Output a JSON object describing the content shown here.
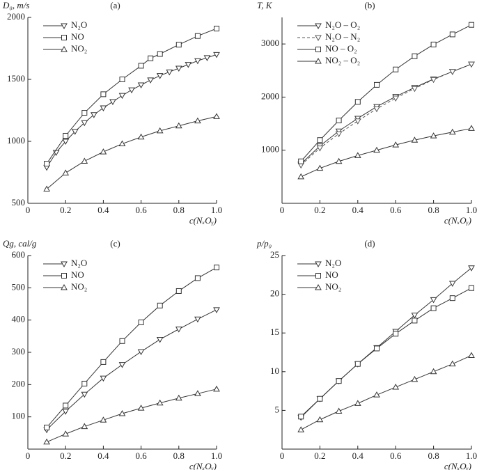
{
  "chart_data": [
    {
      "type": "line",
      "title": "(a)",
      "ylabel": "D₀, m/s",
      "xlabel": "c(NₓOᵧ)",
      "xlim": [
        0,
        1
      ],
      "xticks": [
        0,
        0.2,
        0.4,
        0.6,
        0.8,
        {
          "value": 1,
          "label": "1.0"
        }
      ],
      "ylim": [
        500,
        2000
      ],
      "yticks": [
        500,
        1000,
        1500,
        2000
      ],
      "legend": "upper left",
      "series": [
        {
          "name": "N₂O",
          "color": "#333333",
          "marker": "triangle-down",
          "dash": false,
          "x": [
            0.1,
            0.15,
            0.2,
            0.25,
            0.3,
            0.35,
            0.4,
            0.45,
            0.5,
            0.55,
            0.6,
            0.65,
            0.7,
            0.75,
            0.8,
            0.85,
            0.9,
            0.95,
            1
          ],
          "values": [
            790,
            910,
            1000,
            1080,
            1150,
            1215,
            1270,
            1320,
            1370,
            1415,
            1455,
            1495,
            1530,
            1560,
            1590,
            1620,
            1650,
            1675,
            1700
          ]
        },
        {
          "name": "NO",
          "color": "#333333",
          "marker": "square",
          "dash": false,
          "x": [
            0.1,
            0.2,
            0.3,
            0.4,
            0.5,
            0.6,
            0.65,
            0.7,
            0.8,
            0.9,
            1
          ],
          "values": [
            820,
            1045,
            1230,
            1380,
            1500,
            1610,
            1670,
            1705,
            1780,
            1850,
            1910
          ]
        },
        {
          "name": "NO₂",
          "color": "#333333",
          "marker": "triangle-up",
          "dash": false,
          "x": [
            0.1,
            0.2,
            0.3,
            0.4,
            0.5,
            0.6,
            0.7,
            0.8,
            0.9,
            1
          ],
          "values": [
            615,
            745,
            840,
            915,
            980,
            1035,
            1085,
            1125,
            1165,
            1200
          ]
        }
      ]
    },
    {
      "type": "line",
      "title": "(b)",
      "ylabel": "T, K",
      "xlabel": "c(NₓOᵧ)",
      "xlim": [
        0,
        1
      ],
      "xticks": [
        0,
        0.2,
        0.4,
        0.6,
        0.8,
        {
          "value": 1,
          "label": "1.0"
        }
      ],
      "ylim": [
        0,
        3500
      ],
      "yticks": [
        1000,
        2000,
        3000
      ],
      "legend": "upper left",
      "series": [
        {
          "name": "N₂O – O₂",
          "color": "#333333",
          "marker": "triangle-down",
          "dash": false,
          "x": [
            0.1,
            0.2,
            0.3,
            0.4,
            0.5,
            0.6,
            0.7,
            0.8,
            0.9,
            1
          ],
          "values": [
            740,
            1080,
            1360,
            1600,
            1820,
            2010,
            2180,
            2340,
            2480,
            2620
          ]
        },
        {
          "name": "N₂O – N₂",
          "color": "#555555",
          "marker": "triangle-down",
          "dash": true,
          "x": [
            0.1,
            0.2,
            0.3,
            0.4,
            0.5,
            0.6,
            0.7,
            0.8,
            0.9,
            1
          ],
          "values": [
            720,
            1040,
            1310,
            1550,
            1780,
            1980,
            2160,
            2330,
            2480,
            2620
          ]
        },
        {
          "name": "NO – O₂",
          "color": "#333333",
          "marker": "square",
          "dash": false,
          "x": [
            0.1,
            0.2,
            0.3,
            0.4,
            0.5,
            0.6,
            0.7,
            0.8,
            0.9,
            1
          ],
          "values": [
            790,
            1190,
            1560,
            1910,
            2230,
            2520,
            2770,
            2990,
            3180,
            3360
          ]
        },
        {
          "name": "NO₂ – O₂",
          "color": "#333333",
          "marker": "triangle-up",
          "dash": false,
          "x": [
            0.1,
            0.2,
            0.3,
            0.4,
            0.5,
            0.6,
            0.7,
            0.8,
            0.9,
            1
          ],
          "values": [
            500,
            660,
            790,
            900,
            1000,
            1100,
            1190,
            1270,
            1340,
            1410
          ]
        }
      ]
    },
    {
      "type": "line",
      "title": "(c)",
      "ylabel": "Qg, cal/g",
      "xlabel": "c(NₓOᵧ)",
      "xlim": [
        0,
        1
      ],
      "xticks": [
        0,
        0.2,
        0.4,
        0.6,
        0.8,
        {
          "value": 1,
          "label": "1.0"
        }
      ],
      "ylim": [
        0,
        600
      ],
      "yticks": [
        100,
        200,
        300,
        400,
        500,
        600
      ],
      "legend": "upper left",
      "series": [
        {
          "name": "N₂O",
          "color": "#333333",
          "marker": "triangle-down",
          "dash": false,
          "x": [
            0.1,
            0.2,
            0.3,
            0.4,
            0.5,
            0.6,
            0.7,
            0.8,
            0.9,
            1
          ],
          "values": [
            60,
            117,
            170,
            220,
            262,
            302,
            340,
            372,
            403,
            432
          ]
        },
        {
          "name": "NO",
          "color": "#333333",
          "marker": "square",
          "dash": false,
          "x": [
            0.1,
            0.2,
            0.3,
            0.4,
            0.5,
            0.6,
            0.7,
            0.8,
            0.9,
            1
          ],
          "values": [
            67,
            135,
            203,
            270,
            335,
            393,
            445,
            490,
            530,
            563
          ]
        },
        {
          "name": "NO₂",
          "color": "#333333",
          "marker": "triangle-up",
          "dash": false,
          "x": [
            0.1,
            0.2,
            0.3,
            0.4,
            0.5,
            0.6,
            0.7,
            0.8,
            0.9,
            1
          ],
          "values": [
            22,
            47,
            70,
            90,
            110,
            127,
            143,
            158,
            172,
            186
          ]
        }
      ]
    },
    {
      "type": "line",
      "title": "(d)",
      "ylabel": "p/p₀",
      "xlabel": "c(NₓOᵧ)",
      "xlim": [
        0,
        1
      ],
      "xticks": [
        0,
        0.2,
        0.4,
        0.6,
        0.8,
        {
          "value": 1,
          "label": "1.0"
        }
      ],
      "ylim": [
        0,
        25
      ],
      "yticks": [
        5,
        10,
        15,
        20,
        25
      ],
      "legend": "upper left",
      "series": [
        {
          "name": "N₂O",
          "color": "#333333",
          "marker": "triangle-down",
          "dash": false,
          "x": [
            0.1,
            0.2,
            0.3,
            0.4,
            0.5,
            0.6,
            0.7,
            0.8,
            0.9,
            1
          ],
          "values": [
            4.1,
            6.5,
            8.8,
            11.0,
            13.1,
            15.2,
            17.3,
            19.3,
            21.4,
            23.4
          ]
        },
        {
          "name": "NO",
          "color": "#333333",
          "marker": "square",
          "dash": false,
          "x": [
            0.1,
            0.2,
            0.3,
            0.4,
            0.5,
            0.6,
            0.7,
            0.8,
            0.9,
            1
          ],
          "values": [
            4.2,
            6.5,
            8.8,
            11.0,
            13.0,
            14.9,
            16.6,
            18.2,
            19.5,
            20.8
          ]
        },
        {
          "name": "NO₂",
          "color": "#333333",
          "marker": "triangle-up",
          "dash": false,
          "x": [
            0.1,
            0.2,
            0.3,
            0.4,
            0.5,
            0.6,
            0.7,
            0.8,
            0.9,
            1
          ],
          "values": [
            2.5,
            3.8,
            4.9,
            5.9,
            7.0,
            8.0,
            9.0,
            10.0,
            11.0,
            12.1
          ]
        }
      ]
    }
  ]
}
